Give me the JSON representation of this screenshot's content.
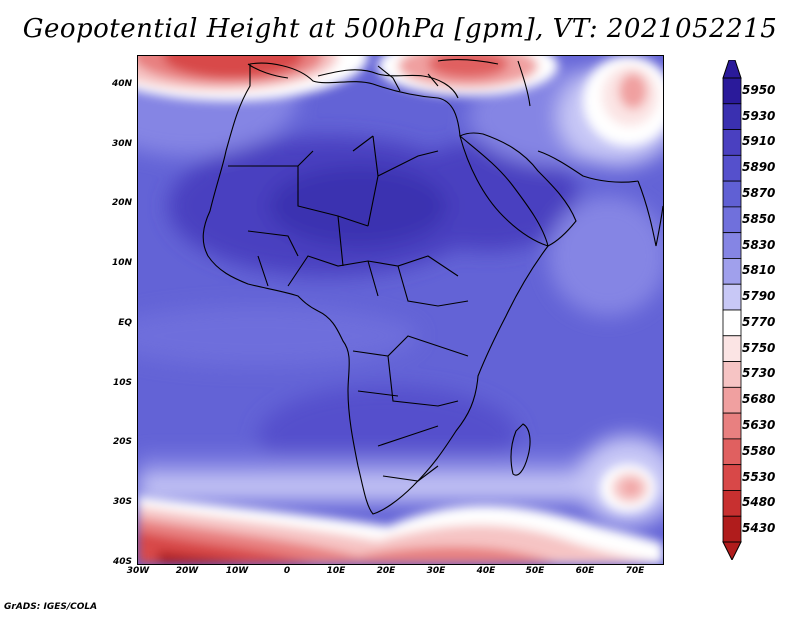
{
  "title": "Geopotential Height at 500hPa [gpm], VT: 2021052215",
  "footer": "GrADS: IGES/COLA",
  "map": {
    "region": "Africa",
    "variable": "Geopotential Height",
    "level": "500hPa",
    "units": "gpm",
    "valid_time": "2021052215",
    "lon_range": [
      -30,
      75
    ],
    "lat_range": [
      -40,
      45
    ],
    "lat_ticks": [
      "40N",
      "30N",
      "20N",
      "10N",
      "EQ",
      "10S",
      "20S",
      "30S",
      "40S"
    ],
    "lon_ticks": [
      "30W",
      "20W",
      "10W",
      "0",
      "10E",
      "20E",
      "30E",
      "40E",
      "50E",
      "60E",
      "70E"
    ]
  },
  "colorbar": {
    "levels": [
      "5950",
      "5930",
      "5910",
      "5890",
      "5870",
      "5850",
      "5830",
      "5810",
      "5790",
      "5770",
      "5750",
      "5730",
      "5680",
      "5630",
      "5580",
      "5530",
      "5480",
      "5430"
    ],
    "colors": [
      "#2a1a9a",
      "#3a30b0",
      "#4a40c0",
      "#5550cc",
      "#6060d4",
      "#7070dc",
      "#8585e4",
      "#a0a0ec",
      "#c8c8f6",
      "#ffffff",
      "#fbe4e4",
      "#f6c4c4",
      "#f0a0a0",
      "#e88080",
      "#e06060",
      "#d84848",
      "#c83030",
      "#b01c1c"
    ]
  }
}
